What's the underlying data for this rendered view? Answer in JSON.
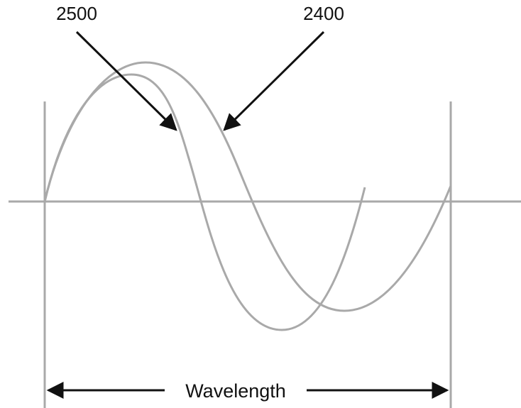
{
  "labels": {
    "wave_a": "2500",
    "wave_b": "2400",
    "span": "Wavelength"
  },
  "colors": {
    "wave": "#a9a9a9",
    "axis": "#a9a9a9",
    "arrow": "#111111",
    "text": "#111111"
  }
}
